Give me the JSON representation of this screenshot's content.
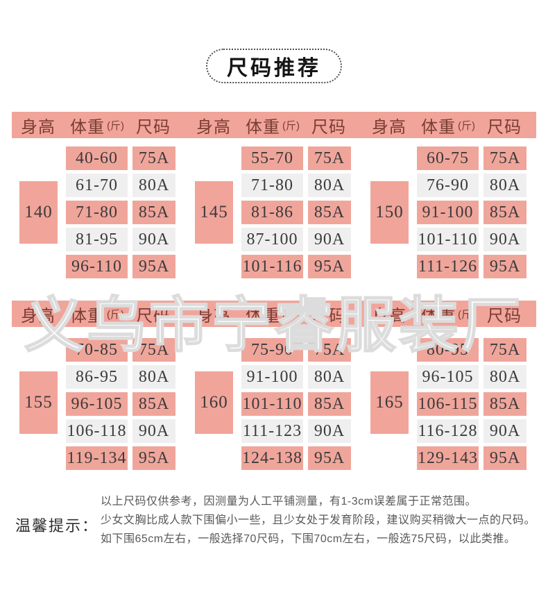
{
  "title": "尺码推荐",
  "watermark": "义乌市宁睿服装厂",
  "column_headers": {
    "height": "身高",
    "weight": "体重",
    "weight_unit": "(斤)",
    "size": "尺码"
  },
  "size_tables": [
    {
      "height": "140",
      "rows": [
        {
          "weight": "40-60",
          "size": "75A"
        },
        {
          "weight": "61-70",
          "size": "80A"
        },
        {
          "weight": "71-80",
          "size": "85A"
        },
        {
          "weight": "81-95",
          "size": "90A"
        },
        {
          "weight": "96-110",
          "size": "95A"
        }
      ]
    },
    {
      "height": "145",
      "rows": [
        {
          "weight": "55-70",
          "size": "75A"
        },
        {
          "weight": "71-80",
          "size": "80A"
        },
        {
          "weight": "81-86",
          "size": "85A"
        },
        {
          "weight": "87-100",
          "size": "90A"
        },
        {
          "weight": "101-116",
          "size": "95A"
        }
      ]
    },
    {
      "height": "150",
      "rows": [
        {
          "weight": "60-75",
          "size": "75A"
        },
        {
          "weight": "76-90",
          "size": "80A"
        },
        {
          "weight": "91-100",
          "size": "85A"
        },
        {
          "weight": "101-110",
          "size": "90A"
        },
        {
          "weight": "111-126",
          "size": "95A"
        }
      ]
    },
    {
      "height": "155",
      "rows": [
        {
          "weight": "70-85",
          "size": "75A"
        },
        {
          "weight": "86-95",
          "size": "80A"
        },
        {
          "weight": "96-105",
          "size": "85A"
        },
        {
          "weight": "106-118",
          "size": "90A"
        },
        {
          "weight": "119-134",
          "size": "95A"
        }
      ]
    },
    {
      "height": "160",
      "rows": [
        {
          "weight": "75-90",
          "size": "75A"
        },
        {
          "weight": "91-100",
          "size": "80A"
        },
        {
          "weight": "101-110",
          "size": "85A"
        },
        {
          "weight": "111-123",
          "size": "90A"
        },
        {
          "weight": "124-138",
          "size": "95A"
        }
      ]
    },
    {
      "height": "165",
      "rows": [
        {
          "weight": "80-95",
          "size": "75A"
        },
        {
          "weight": "96-105",
          "size": "80A"
        },
        {
          "weight": "106-115",
          "size": "85A"
        },
        {
          "weight": "116-128",
          "size": "90A"
        },
        {
          "weight": "129-143",
          "size": "95A"
        }
      ]
    }
  ],
  "tips": {
    "label": "温馨提示：",
    "lines": [
      "以上尺码仅供参考，因测量为人工平铺测量，有1-3cm误差属于正常范围。",
      "少女文胸比成人款下围偏小一些，且少女处于发育阶段，建议购买稍微大一点的尺码。",
      "如下围65cm左右，一般选择70尺码，下围70cm左右，一般选75尺码，以此类推。"
    ]
  },
  "colors": {
    "pink_header": "#f1a49a",
    "pink_cell": "#f0a59b",
    "row_alt_gray": "#efefef",
    "header_text": "#7a3c34",
    "cell_text": "#3a3a3a",
    "watermark_outline": "#dcdcdc"
  }
}
